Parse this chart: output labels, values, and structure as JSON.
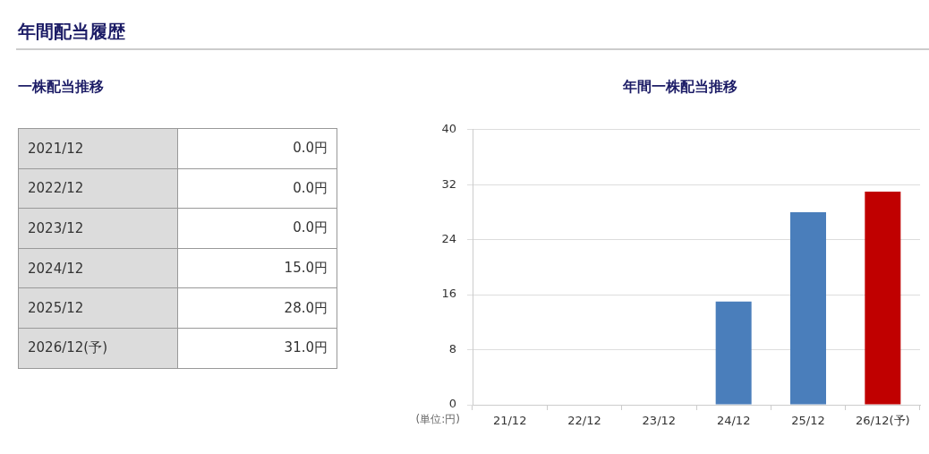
{
  "chart_data": [
    {
      "type": "other",
      "title": "年間配当履歴",
      "subtitle": "一株配当推移",
      "categories": [
        "2021/12",
        "2022/12",
        "2023/12",
        "2024/12",
        "2025/12",
        "2026/12(予)"
      ],
      "value_labels": [
        "0.0円",
        "0.0円",
        "0.0円",
        "15.0円",
        "28.0円",
        "31.0円"
      ]
    },
    {
      "type": "bar",
      "title": "年間一株配当推移",
      "ylabel": "(単位:円)",
      "categories": [
        "21/12",
        "22/12",
        "23/12",
        "24/12",
        "25/12",
        "26/12(予)"
      ],
      "values": [
        0,
        0,
        0,
        15,
        28,
        31
      ],
      "colors": [
        "#4a7ebb",
        "#4a7ebb",
        "#4a7ebb",
        "#4a7ebb",
        "#4a7ebb",
        "#c00000"
      ],
      "ylim": [
        0,
        40
      ],
      "yticks": [
        0,
        8,
        16,
        24,
        32,
        40
      ],
      "grid": "y"
    }
  ]
}
